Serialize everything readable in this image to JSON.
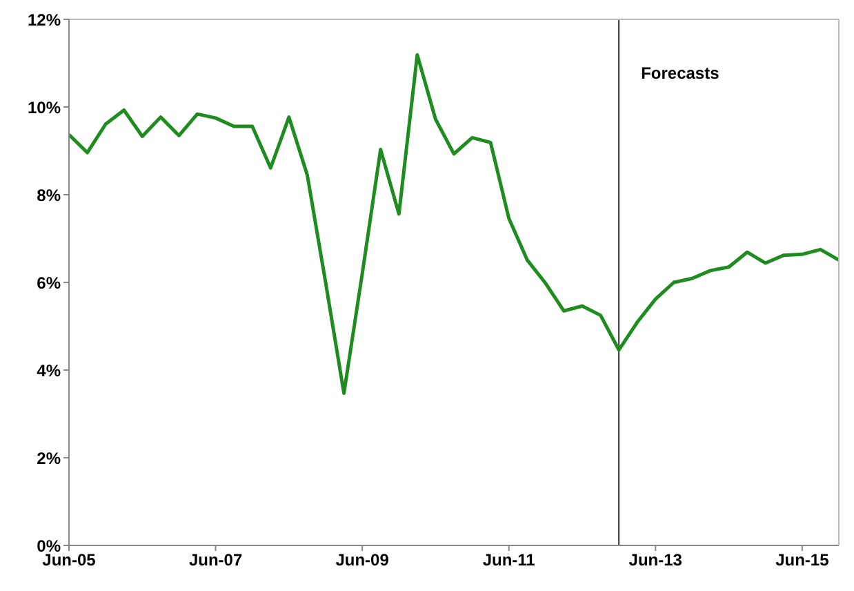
{
  "chart_data": {
    "type": "line",
    "x": [
      "2005-06",
      "2005-09",
      "2005-12",
      "2006-03",
      "2006-06",
      "2006-09",
      "2006-12",
      "2007-03",
      "2007-06",
      "2007-09",
      "2007-12",
      "2008-03",
      "2008-06",
      "2008-09",
      "2008-12",
      "2009-03",
      "2009-06",
      "2009-09",
      "2009-12",
      "2010-03",
      "2010-06",
      "2010-09",
      "2010-12",
      "2011-03",
      "2011-06",
      "2011-09",
      "2011-12",
      "2012-03",
      "2012-06",
      "2012-09",
      "2012-12",
      "2013-03",
      "2013-06",
      "2013-09",
      "2013-12",
      "2014-03",
      "2014-06",
      "2014-09",
      "2014-12",
      "2015-03",
      "2015-06",
      "2015-09",
      "2015-12"
    ],
    "series": [
      {
        "color": "#1e8c1e",
        "values": [
          9.37,
          8.96,
          9.61,
          9.93,
          9.33,
          9.77,
          9.35,
          9.84,
          9.75,
          9.56,
          9.56,
          8.61,
          9.77,
          8.45,
          6.0,
          3.47,
          6.2,
          9.03,
          7.56,
          11.19,
          9.72,
          8.93,
          9.3,
          9.19,
          7.46,
          6.51,
          5.98,
          5.35,
          5.46,
          5.25,
          4.46,
          5.09,
          5.62,
          6.0,
          6.09,
          6.27,
          6.35,
          6.69,
          6.44,
          6.62,
          6.64,
          6.75,
          6.51
        ]
      }
    ],
    "xlim": [
      "2005-06",
      "2015-12"
    ],
    "xticks": [
      {
        "value": "2005-06",
        "label": "Jun-05"
      },
      {
        "value": "2007-06",
        "label": "Jun-07"
      },
      {
        "value": "2009-06",
        "label": "Jun-09"
      },
      {
        "value": "2011-06",
        "label": "Jun-11"
      },
      {
        "value": "2013-06",
        "label": "Jun-13"
      },
      {
        "value": "2015-06",
        "label": "Jun-15"
      }
    ],
    "ylim": [
      0,
      12
    ],
    "yticks": [
      {
        "value": 0,
        "label": "0%"
      },
      {
        "value": 2,
        "label": "2%"
      },
      {
        "value": 4,
        "label": "4%"
      },
      {
        "value": 6,
        "label": "6%"
      },
      {
        "value": 8,
        "label": "8%"
      },
      {
        "value": 10,
        "label": "10%"
      },
      {
        "value": 12,
        "label": "12%"
      }
    ],
    "ref_lines": [
      {
        "axis": "x",
        "value": "2012-12",
        "label": "Forecasts",
        "color": "#333333"
      }
    ],
    "grid": false,
    "legend": false,
    "marker": "none",
    "line_style": "solid"
  }
}
